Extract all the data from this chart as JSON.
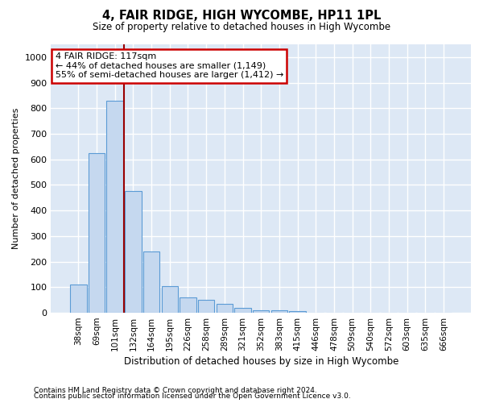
{
  "title": "4, FAIR RIDGE, HIGH WYCOMBE, HP11 1PL",
  "subtitle": "Size of property relative to detached houses in High Wycombe",
  "xlabel": "Distribution of detached houses by size in High Wycombe",
  "ylabel": "Number of detached properties",
  "categories": [
    "38sqm",
    "69sqm",
    "101sqm",
    "132sqm",
    "164sqm",
    "195sqm",
    "226sqm",
    "258sqm",
    "289sqm",
    "321sqm",
    "352sqm",
    "383sqm",
    "415sqm",
    "446sqm",
    "478sqm",
    "509sqm",
    "540sqm",
    "572sqm",
    "603sqm",
    "635sqm",
    "666sqm"
  ],
  "values": [
    110,
    625,
    830,
    475,
    240,
    105,
    60,
    50,
    35,
    20,
    10,
    10,
    5,
    0,
    0,
    0,
    0,
    0,
    0,
    0,
    0
  ],
  "bar_color": "#c5d8ef",
  "bar_edge_color": "#5b9bd5",
  "annotation_line0": "4 FAIR RIDGE: 117sqm",
  "annotation_line1": "← 44% of detached houses are smaller (1,149)",
  "annotation_line2": "55% of semi-detached houses are larger (1,412) →",
  "annotation_box_color": "#ffffff",
  "annotation_box_edge_color": "#cc0000",
  "vline_color": "#990000",
  "ylim": [
    0,
    1050
  ],
  "yticks": [
    0,
    100,
    200,
    300,
    400,
    500,
    600,
    700,
    800,
    900,
    1000
  ],
  "background_color": "#dde8f5",
  "grid_color": "#ffffff",
  "footer1": "Contains HM Land Registry data © Crown copyright and database right 2024.",
  "footer2": "Contains public sector information licensed under the Open Government Licence v3.0."
}
